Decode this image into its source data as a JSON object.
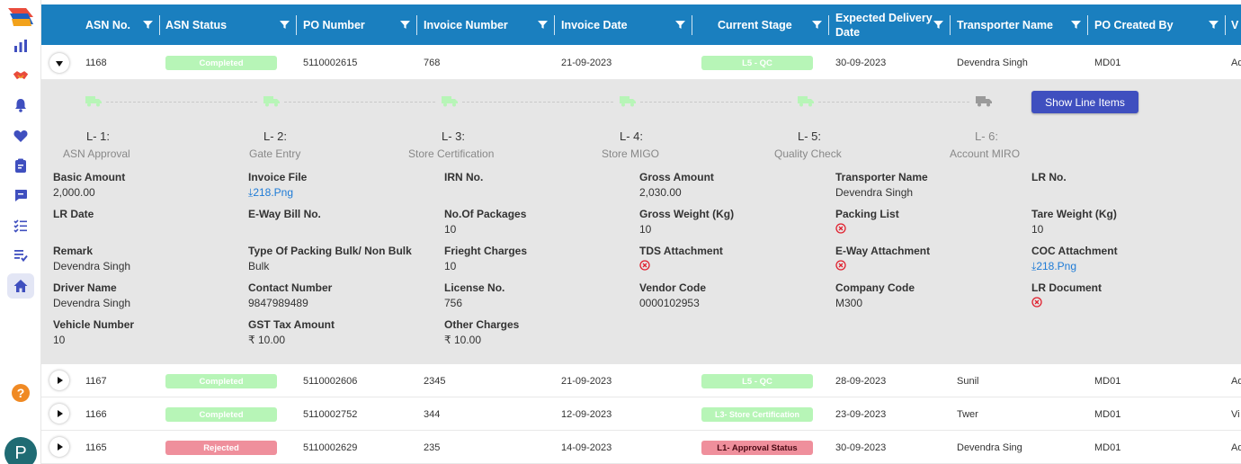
{
  "colors": {
    "header": "#1a7fbf",
    "accent": "#3f4fbf",
    "completed": "#b7f5b7",
    "rejected": "#ef8f9c"
  },
  "sidebar": {
    "icons": [
      "bar-chart-icon",
      "handshake-icon",
      "bell-icon",
      "heart-icon",
      "clipboard-icon",
      "chat-icon",
      "checklist-icon",
      "list-check-icon",
      "home-icon"
    ],
    "help": "?",
    "avatar": "P"
  },
  "table": {
    "columns": [
      "ASN No.",
      "ASN Status",
      "PO Number",
      "Invoice Number",
      "Invoice Date",
      "Current Stage",
      "Expected Delivery Date",
      "Transporter Name",
      "PO Created By",
      "V"
    ],
    "rows": [
      {
        "asn": "1168",
        "status": "Completed",
        "po": "5110002615",
        "invoice": "768",
        "date": "21-09-2023",
        "stage": "L5 - QC",
        "delivery": "30-09-2023",
        "transporter": "Devendra Singh",
        "created": "MD01",
        "last": "Ad",
        "expanded": true
      },
      {
        "asn": "1167",
        "status": "Completed",
        "po": "5110002606",
        "invoice": "2345",
        "date": "21-09-2023",
        "stage": "L5 - QC",
        "delivery": "28-09-2023",
        "transporter": "Sunil",
        "created": "MD01",
        "last": "Ad",
        "expanded": false
      },
      {
        "asn": "1166",
        "status": "Completed",
        "po": "5110002752",
        "invoice": "344",
        "date": "12-09-2023",
        "stage": "L3- Store Certification",
        "delivery": "23-09-2023",
        "transporter": "Twer",
        "created": "MD01",
        "last": "Vi",
        "expanded": false
      },
      {
        "asn": "1165",
        "status": "Rejected",
        "po": "5110002629",
        "invoice": "235",
        "date": "14-09-2023",
        "stage": "L1- Approval Status",
        "delivery": "30-09-2023",
        "transporter": "Devendra Sing",
        "created": "MD01",
        "last": "Ad",
        "expanded": false
      }
    ]
  },
  "detail": {
    "show_button": "Show Line Items",
    "steps": [
      {
        "level": "L- 1:",
        "name": "ASN Approval",
        "done": true
      },
      {
        "level": "L- 2:",
        "name": "Gate Entry",
        "done": true
      },
      {
        "level": "L- 3:",
        "name": "Store Certification",
        "done": true
      },
      {
        "level": "L- 4:",
        "name": "Store MIGO",
        "done": true
      },
      {
        "level": "L- 5:",
        "name": "Quality Check",
        "done": true
      },
      {
        "level": "L- 6:",
        "name": "Account MIRO",
        "done": false
      }
    ],
    "fields": [
      {
        "label": "Basic Amount",
        "value": "2,000.00",
        "kind": "text"
      },
      {
        "label": "Invoice File",
        "value": "218.Png",
        "kind": "link"
      },
      {
        "label": "IRN No.",
        "value": "",
        "kind": "text"
      },
      {
        "label": "Gross Amount",
        "value": "2,030.00",
        "kind": "text"
      },
      {
        "label": "Transporter Name",
        "value": "Devendra Singh",
        "kind": "text"
      },
      {
        "label": "LR No.",
        "value": "",
        "kind": "text"
      },
      {
        "label": "LR Date",
        "value": "",
        "kind": "text"
      },
      {
        "label": "E-Way Bill No.",
        "value": "",
        "kind": "text"
      },
      {
        "label": "No.Of Packages",
        "value": "10",
        "kind": "text"
      },
      {
        "label": "Gross Weight (Kg)",
        "value": "10",
        "kind": "text"
      },
      {
        "label": "Packing List",
        "value": "",
        "kind": "missing"
      },
      {
        "label": "Tare Weight (Kg)",
        "value": "10",
        "kind": "text"
      },
      {
        "label": "Remark",
        "value": "Devendra Singh",
        "kind": "text"
      },
      {
        "label": "Type Of Packing Bulk/ Non Bulk",
        "value": "Bulk",
        "kind": "text"
      },
      {
        "label": "Frieght Charges",
        "value": "10",
        "kind": "text"
      },
      {
        "label": "TDS Attachment",
        "value": "",
        "kind": "missing"
      },
      {
        "label": "E-Way Attachment",
        "value": "",
        "kind": "missing"
      },
      {
        "label": "COC Attachment",
        "value": "218.Png",
        "kind": "link"
      },
      {
        "label": "Driver Name",
        "value": "Devendra Singh",
        "kind": "text"
      },
      {
        "label": "Contact Number",
        "value": "9847989489",
        "kind": "text"
      },
      {
        "label": "License No.",
        "value": "756",
        "kind": "text"
      },
      {
        "label": "Vendor Code",
        "value": "0000102953",
        "kind": "text"
      },
      {
        "label": "Company Code",
        "value": "M300",
        "kind": "text"
      },
      {
        "label": "LR Document",
        "value": "",
        "kind": "missing"
      },
      {
        "label": "Vehicle Number",
        "value": "10",
        "kind": "text"
      },
      {
        "label": "GST Tax Amount",
        "value": "₹ 10.00",
        "kind": "text"
      },
      {
        "label": "Other Charges",
        "value": "₹ 10.00",
        "kind": "text"
      }
    ]
  }
}
